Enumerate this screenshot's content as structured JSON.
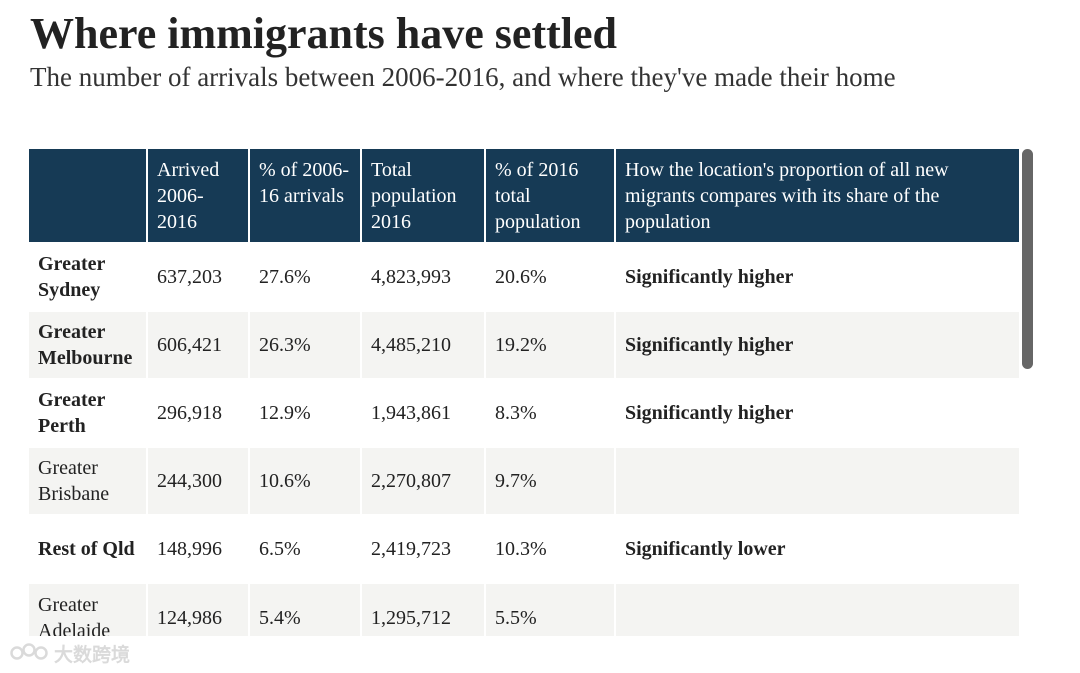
{
  "header": {
    "title": "Where immigrants have settled",
    "subtitle": "The number of arrivals between 2006-2016, and where they've made their home"
  },
  "table": {
    "columns": [
      "",
      "Arrived 2006-2016",
      "% of 2006-16 arrivals",
      "Total population 2016",
      "% of 2016 total population",
      "How the location's proportion of all new migrants compares with its share of the population"
    ],
    "rows": [
      {
        "location": "Greater Sydney",
        "arrived": "637,203",
        "pct_arrivals": "27.6%",
        "population": "4,823,993",
        "pct_population": "20.6%",
        "comparison": "Significantly higher",
        "bold": true
      },
      {
        "location": "Greater Melbourne",
        "arrived": "606,421",
        "pct_arrivals": "26.3%",
        "population": "4,485,210",
        "pct_population": "19.2%",
        "comparison": "Significantly higher",
        "bold": true
      },
      {
        "location": "Greater Perth",
        "arrived": "296,918",
        "pct_arrivals": "12.9%",
        "population": "1,943,861",
        "pct_population": "8.3%",
        "comparison": "Significantly higher",
        "bold": true
      },
      {
        "location": "Greater Brisbane",
        "arrived": "244,300",
        "pct_arrivals": "10.6%",
        "population": "2,270,807",
        "pct_population": "9.7%",
        "comparison": "",
        "bold": false
      },
      {
        "location": "Rest of Qld",
        "arrived": "148,996",
        "pct_arrivals": "6.5%",
        "population": "2,419,723",
        "pct_population": "10.3%",
        "comparison": "Significantly lower",
        "bold": true
      },
      {
        "location": "Greater Adelaide",
        "arrived": "124,986",
        "pct_arrivals": "5.4%",
        "population": "1,295,712",
        "pct_population": "5.5%",
        "comparison": "",
        "bold": false
      }
    ]
  },
  "watermark": {
    "text": "大数跨境",
    "icon": "watermark-logo-icon"
  },
  "colors": {
    "header_bg": "#163a55",
    "header_text": "#ffffff",
    "row_alt_bg": "#f4f4f2",
    "scroll_thumb": "#666666"
  }
}
